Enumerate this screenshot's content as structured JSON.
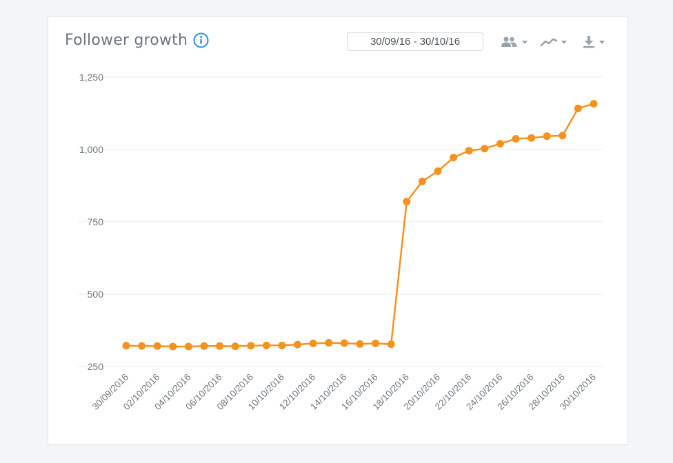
{
  "widget": {
    "title": "Follower growth",
    "date_range": "30/09/16 - 30/10/16"
  },
  "toolbar": {
    "audience_icon": "people-icon",
    "chart_type_icon": "line-chart-icon",
    "download_icon": "download-icon"
  },
  "colors": {
    "series": "#f5921e",
    "grid": "#e6e8eb",
    "info": "#2e8de0",
    "icons": "#9aa3ad"
  },
  "chart_data": {
    "type": "line",
    "title": "Follower growth",
    "xlabel": "",
    "ylabel": "",
    "ylim": [
      250,
      1250
    ],
    "yticks": [
      250,
      500,
      750,
      1000,
      1250
    ],
    "ytick_labels": [
      "250",
      "500",
      "750",
      "1,000",
      "1,250"
    ],
    "grid": true,
    "legend": "none",
    "x_tick_labels": [
      "30/09/2016",
      "02/10/2016",
      "04/10/2016",
      "06/10/2016",
      "08/10/2016",
      "10/10/2016",
      "12/10/2016",
      "14/10/2016",
      "16/10/2016",
      "18/10/2016",
      "20/10/2016",
      "22/10/2016",
      "24/10/2016",
      "26/10/2016",
      "28/10/2016",
      "30/10/2016"
    ],
    "x": [
      "30/09/2016",
      "01/10/2016",
      "02/10/2016",
      "03/10/2016",
      "04/10/2016",
      "05/10/2016",
      "06/10/2016",
      "07/10/2016",
      "08/10/2016",
      "09/10/2016",
      "10/10/2016",
      "11/10/2016",
      "12/10/2016",
      "13/10/2016",
      "14/10/2016",
      "15/10/2016",
      "16/10/2016",
      "17/10/2016",
      "18/10/2016",
      "19/10/2016",
      "20/10/2016",
      "21/10/2016",
      "22/10/2016",
      "23/10/2016",
      "24/10/2016",
      "25/10/2016",
      "26/10/2016",
      "27/10/2016",
      "28/10/2016",
      "29/10/2016",
      "30/10/2016"
    ],
    "series": [
      {
        "values": [
          322,
          321,
          321,
          319,
          319,
          321,
          321,
          320,
          322,
          323,
          323,
          326,
          330,
          332,
          331,
          328,
          330,
          327,
          820,
          890,
          925,
          972,
          996,
          1003,
          1020,
          1037,
          1040,
          1046,
          1048,
          1142,
          1158
        ]
      }
    ]
  }
}
